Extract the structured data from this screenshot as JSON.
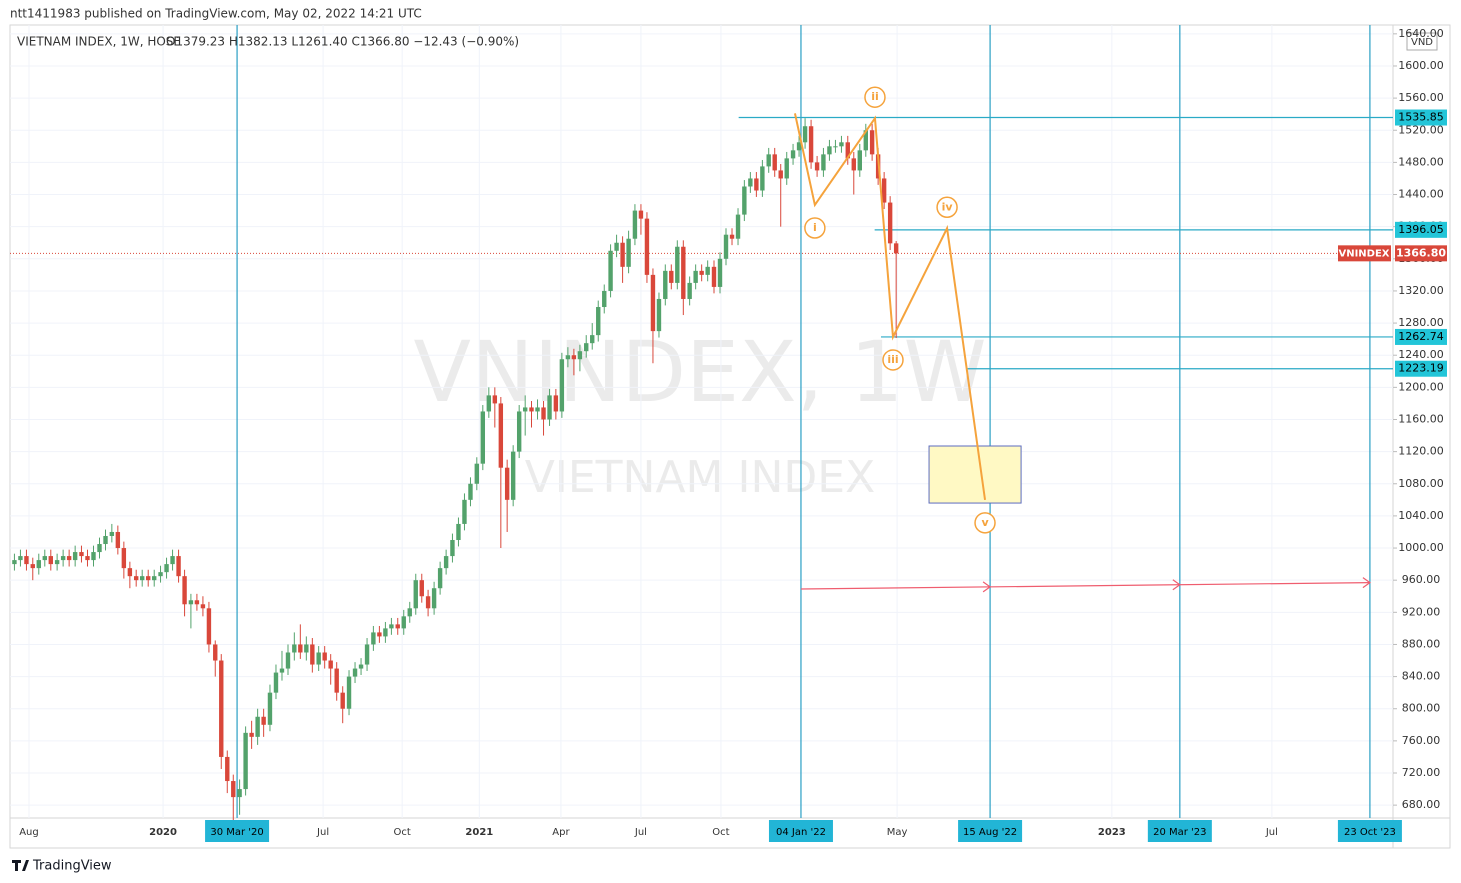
{
  "header": {
    "published": "ntt1411983 published on TradingView.com, May 02, 2022 14:21 UTC",
    "logo": "TradingView"
  },
  "chart_data": {
    "type": "candlestick",
    "title": "VIETNAM INDEX, 1W, HOSE",
    "ohlc_text": "O1379.23 H1382.13 L1261.40 C1366.80 −12.43 (−0.90%)",
    "watermark": "VNINDEX, 1W",
    "watermark_sub": "VIETNAM INDEX",
    "currency": "VND",
    "symbol": "VNINDEX",
    "up_color": "#53a26b",
    "down_color": "#d9473a",
    "grid": true,
    "xlim": [
      2019.516,
      2023.889
    ],
    "ylim": [
      664,
      1651
    ],
    "xticks": [
      {
        "value": 2019.576,
        "label": "Aug"
      },
      2020,
      {
        "value": 2020.234,
        "label": "30 Mar '20",
        "marker": true
      },
      {
        "value": 2020.506,
        "label": "Jul"
      },
      {
        "value": 2020.756,
        "label": "Oct"
      },
      2021,
      {
        "value": 2021.258,
        "label": "Apr"
      },
      {
        "value": 2021.511,
        "label": "Jul"
      },
      {
        "value": 2021.764,
        "label": "Oct"
      },
      {
        "value": 2022.017,
        "label": "04 Jan '22",
        "marker": true
      },
      {
        "value": 2022.321,
        "label": "May"
      },
      {
        "value": 2022.615,
        "label": "15 Aug '22",
        "marker": true
      },
      2023,
      {
        "value": 2023.215,
        "label": "20 Mar '23",
        "marker": true
      },
      {
        "value": 2023.506,
        "label": "Jul"
      },
      {
        "value": 2023.816,
        "label": "23 Oct '23",
        "marker": true
      }
    ],
    "yticks": [
      {
        "value": 680,
        "label": "680.00"
      },
      {
        "value": 720,
        "label": "720.00"
      },
      {
        "value": 760,
        "label": "760.00"
      },
      {
        "value": 800,
        "label": "800.00"
      },
      {
        "value": 840,
        "label": "840.00"
      },
      {
        "value": 880,
        "label": "880.00"
      },
      {
        "value": 920,
        "label": "920.00"
      },
      {
        "value": 960,
        "label": "960.00"
      },
      {
        "value": 1000,
        "label": "1000.00"
      },
      {
        "value": 1040,
        "label": "1040.00"
      },
      {
        "value": 1080,
        "label": "1080.00"
      },
      {
        "value": 1120,
        "label": "1120.00"
      },
      {
        "value": 1160,
        "label": "1160.00"
      },
      {
        "value": 1200,
        "label": "1200.00"
      },
      {
        "value": 1240,
        "label": "1240.00"
      },
      {
        "value": 1280,
        "label": "1280.00"
      },
      {
        "value": 1320,
        "label": "1320.00"
      },
      {
        "value": 1360,
        "label": "1360.00"
      },
      {
        "value": 1400,
        "label": "1400.00"
      },
      {
        "value": 1440,
        "label": "1440.00"
      },
      {
        "value": 1480,
        "label": "1480.00"
      },
      {
        "value": 1520,
        "label": "1520.00"
      },
      {
        "value": 1560,
        "label": "1560.00"
      },
      {
        "value": 1600,
        "label": "1600.00"
      },
      {
        "value": 1640,
        "label": "1640.00"
      }
    ],
    "x": [
      2019.53,
      2019.549,
      2019.568,
      2019.588,
      2019.607,
      2019.626,
      2019.645,
      2019.665,
      2019.684,
      2019.703,
      2019.722,
      2019.742,
      2019.761,
      2019.78,
      2019.799,
      2019.818,
      2019.838,
      2019.857,
      2019.876,
      2019.895,
      2019.915,
      2019.934,
      2019.953,
      2019.972,
      2019.992,
      2020.011,
      2020.03,
      2020.049,
      2020.068,
      2020.088,
      2020.107,
      2020.126,
      2020.145,
      2020.165,
      2020.184,
      2020.203,
      2020.222,
      2020.242,
      2020.261,
      2020.28,
      2020.299,
      2020.318,
      2020.338,
      2020.357,
      2020.376,
      2020.395,
      2020.415,
      2020.434,
      2020.453,
      2020.472,
      2020.492,
      2020.511,
      2020.53,
      2020.549,
      2020.568,
      2020.588,
      2020.607,
      2020.626,
      2020.645,
      2020.665,
      2020.684,
      2020.703,
      2020.722,
      2020.742,
      2020.761,
      2020.78,
      2020.799,
      2020.818,
      2020.838,
      2020.857,
      2020.876,
      2020.895,
      2020.915,
      2020.934,
      2020.953,
      2020.972,
      2020.992,
      2021.011,
      2021.03,
      2021.049,
      2021.068,
      2021.088,
      2021.107,
      2021.126,
      2021.145,
      2021.165,
      2021.184,
      2021.203,
      2021.222,
      2021.242,
      2021.261,
      2021.28,
      2021.299,
      2021.318,
      2021.338,
      2021.357,
      2021.376,
      2021.395,
      2021.415,
      2021.434,
      2021.453,
      2021.472,
      2021.492,
      2021.511,
      2021.53,
      2021.549,
      2021.568,
      2021.588,
      2021.607,
      2021.626,
      2021.645,
      2021.665,
      2021.684,
      2021.703,
      2021.722,
      2021.742,
      2021.761,
      2021.78,
      2021.799,
      2021.818,
      2021.838,
      2021.857,
      2021.876,
      2021.895,
      2021.915,
      2021.934,
      2021.953,
      2021.972,
      2021.992,
      2022.011,
      2022.03,
      2022.049,
      2022.068,
      2022.088,
      2022.107,
      2022.126,
      2022.145,
      2022.165,
      2022.184,
      2022.203,
      2022.222,
      2022.242,
      2022.261,
      2022.28,
      2022.299,
      2022.318
    ],
    "open": [
      980,
      985,
      990,
      980,
      975,
      985,
      990,
      980,
      985,
      990,
      985,
      995,
      990,
      985,
      995,
      1005,
      1015,
      1020,
      1000,
      975,
      965,
      960,
      965,
      960,
      965,
      970,
      980,
      990,
      965,
      930,
      935,
      930,
      925,
      880,
      860,
      740,
      710,
      690,
      700,
      770,
      765,
      790,
      780,
      820,
      845,
      850,
      870,
      880,
      870,
      880,
      855,
      870,
      860,
      850,
      820,
      800,
      840,
      850,
      855,
      880,
      895,
      890,
      900,
      905,
      900,
      915,
      925,
      960,
      940,
      925,
      950,
      975,
      990,
      1010,
      1030,
      1060,
      1080,
      1105,
      1170,
      1190,
      1180,
      1100,
      1060,
      1120,
      1170,
      1175,
      1170,
      1175,
      1160,
      1190,
      1170,
      1235,
      1240,
      1235,
      1245,
      1255,
      1265,
      1300,
      1320,
      1370,
      1380,
      1350,
      1385,
      1420,
      1410,
      1340,
      1270,
      1310,
      1345,
      1330,
      1375,
      1310,
      1330,
      1345,
      1340,
      1350,
      1325,
      1360,
      1390,
      1385,
      1415,
      1450,
      1460,
      1445,
      1475,
      1490,
      1470,
      1460,
      1485,
      1495,
      1505,
      1525,
      1480,
      1470,
      1490,
      1500,
      1500,
      1505,
      1485,
      1470,
      1495,
      1520,
      1490,
      1460,
      1430,
      1379.23
    ],
    "high": [
      993,
      998,
      998,
      988,
      993,
      998,
      998,
      993,
      998,
      998,
      1003,
      1003,
      998,
      1003,
      1013,
      1023,
      1030,
      1028,
      1008,
      983,
      973,
      973,
      973,
      973,
      978,
      988,
      998,
      998,
      973,
      943,
      943,
      940,
      933,
      885,
      868,
      748,
      718,
      712,
      778,
      785,
      800,
      800,
      830,
      855,
      872,
      880,
      895,
      905,
      890,
      888,
      878,
      878,
      868,
      858,
      828,
      848,
      858,
      863,
      888,
      903,
      903,
      908,
      913,
      913,
      923,
      933,
      968,
      968,
      948,
      958,
      983,
      998,
      1018,
      1038,
      1068,
      1088,
      1113,
      1178,
      1200,
      1200,
      1188,
      1110,
      1128,
      1178,
      1190,
      1183,
      1185,
      1183,
      1198,
      1198,
      1243,
      1250,
      1248,
      1253,
      1265,
      1280,
      1308,
      1328,
      1378,
      1390,
      1388,
      1395,
      1428,
      1428,
      1418,
      1348,
      1318,
      1353,
      1353,
      1383,
      1383,
      1338,
      1353,
      1353,
      1358,
      1358,
      1368,
      1398,
      1398,
      1423,
      1458,
      1468,
      1468,
      1483,
      1498,
      1498,
      1478,
      1493,
      1503,
      1513,
      1535,
      1533,
      1488,
      1498,
      1508,
      1508,
      1513,
      1513,
      1493,
      1503,
      1528,
      1528,
      1498,
      1468,
      1438,
      1382.13
    ],
    "low": [
      972,
      977,
      972,
      960,
      967,
      977,
      972,
      972,
      977,
      977,
      977,
      982,
      977,
      977,
      987,
      997,
      1007,
      992,
      962,
      950,
      952,
      952,
      952,
      952,
      957,
      962,
      972,
      957,
      915,
      900,
      922,
      915,
      870,
      840,
      725,
      695,
      660,
      668,
      692,
      750,
      755,
      765,
      772,
      812,
      835,
      842,
      860,
      862,
      860,
      845,
      847,
      850,
      830,
      810,
      782,
      792,
      832,
      842,
      847,
      872,
      882,
      882,
      892,
      892,
      892,
      907,
      917,
      932,
      915,
      917,
      942,
      967,
      982,
      1002,
      1022,
      1052,
      1072,
      1097,
      1162,
      1150,
      1000,
      1020,
      1052,
      1112,
      1140,
      1150,
      1160,
      1140,
      1152,
      1160,
      1162,
      1225,
      1215,
      1220,
      1237,
      1247,
      1257,
      1292,
      1312,
      1362,
      1330,
      1342,
      1377,
      1390,
      1330,
      1230,
      1262,
      1302,
      1322,
      1322,
      1290,
      1302,
      1322,
      1332,
      1332,
      1317,
      1317,
      1352,
      1377,
      1377,
      1407,
      1442,
      1437,
      1437,
      1467,
      1462,
      1400,
      1452,
      1477,
      1487,
      1497,
      1472,
      1462,
      1462,
      1482,
      1492,
      1492,
      1477,
      1440,
      1462,
      1487,
      1482,
      1452,
      1422,
      1371,
      1261.4
    ],
    "close": [
      985,
      990,
      980,
      975,
      985,
      990,
      980,
      985,
      990,
      985,
      995,
      990,
      985,
      995,
      1005,
      1015,
      1020,
      1000,
      975,
      965,
      960,
      965,
      960,
      965,
      970,
      980,
      990,
      965,
      930,
      935,
      930,
      925,
      880,
      860,
      740,
      710,
      690,
      700,
      770,
      765,
      790,
      780,
      820,
      845,
      850,
      870,
      880,
      870,
      880,
      855,
      870,
      860,
      850,
      820,
      800,
      840,
      850,
      855,
      880,
      895,
      890,
      900,
      905,
      900,
      915,
      925,
      960,
      940,
      925,
      950,
      975,
      990,
      1010,
      1030,
      1060,
      1080,
      1105,
      1170,
      1190,
      1180,
      1100,
      1060,
      1120,
      1170,
      1175,
      1170,
      1175,
      1160,
      1190,
      1170,
      1235,
      1240,
      1235,
      1245,
      1255,
      1265,
      1300,
      1320,
      1370,
      1380,
      1350,
      1385,
      1420,
      1410,
      1340,
      1270,
      1310,
      1345,
      1330,
      1375,
      1310,
      1330,
      1345,
      1340,
      1350,
      1325,
      1360,
      1390,
      1385,
      1415,
      1450,
      1460,
      1445,
      1475,
      1490,
      1470,
      1460,
      1485,
      1495,
      1505,
      1525,
      1480,
      1470,
      1490,
      1500,
      1500,
      1505,
      1485,
      1470,
      1495,
      1520,
      1490,
      1460,
      1430,
      1379.23,
      1366.8
    ],
    "last_price": {
      "value": 1366.8,
      "label": "1366.80"
    },
    "hlines": [
      {
        "value": 1535.85,
        "from": 2021.82
      },
      {
        "value": 1396.05,
        "from": 2022.25
      },
      {
        "value": 1262.74,
        "from": 2022.27
      },
      {
        "value": 1223.19,
        "from": 2022.54
      }
    ],
    "wave": {
      "x": [
        2021.998,
        2022.061,
        2022.251,
        2022.308,
        2022.479,
        2022.599
      ],
      "y": [
        1541,
        1427,
        1535,
        1262.74,
        1398,
        1060
      ],
      "labels": [
        null,
        "i",
        "ii",
        "iii",
        "iv",
        "v"
      ],
      "color": "#f5a33c"
    },
    "zone": {
      "x": [
        2022.422,
        2022.713
      ],
      "y": [
        1056,
        1127
      ]
    },
    "arrow": {
      "x": [
        2022.017,
        2023.816
      ],
      "y": [
        949,
        957
      ],
      "color": "#ef5d6f"
    }
  }
}
